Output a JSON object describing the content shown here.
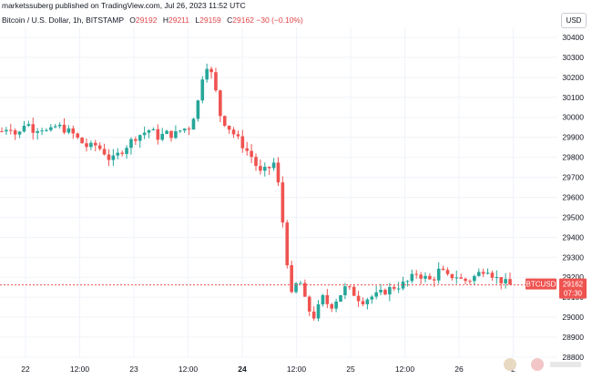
{
  "header": {
    "publisher": "marketssuberg published on TradingView.com, Jul 26, 2023 11:52 UTC",
    "symbol": "Bitcoin / U.S. Dollar, 1h, BITSTAMP",
    "ohlc": {
      "O": "29192",
      "H": "29211",
      "L": "29159",
      "C": "29162",
      "change": "−30 (−0.10%)"
    }
  },
  "currency": "USD",
  "price_tag": {
    "symbol": "BTCUSD",
    "price": "29162",
    "countdown": "07:30"
  },
  "colors": {
    "up": "#26a69a",
    "down": "#ef5350",
    "price_line": "#ef5350",
    "grid": "#f0f3fa"
  },
  "chart_data": {
    "type": "candlestick",
    "title": "Bitcoin / U.S. Dollar, 1h, BITSTAMP",
    "ylim": [
      28800,
      30450
    ],
    "yticks": [
      30400,
      30300,
      30200,
      30100,
      30000,
      29900,
      29800,
      29700,
      29600,
      29500,
      29400,
      29300,
      29200,
      29100,
      29000,
      28900,
      28800
    ],
    "xticks": [
      {
        "label": "22",
        "bold": false
      },
      {
        "label": "12:00",
        "bold": false
      },
      {
        "label": "23",
        "bold": false
      },
      {
        "label": "12:00",
        "bold": false
      },
      {
        "label": "24",
        "bold": true
      },
      {
        "label": "12:00",
        "bold": false
      },
      {
        "label": "25",
        "bold": false
      },
      {
        "label": "12:00",
        "bold": false
      },
      {
        "label": "26",
        "bold": false
      },
      {
        "label": "2",
        "bold": false
      }
    ],
    "current_price": 29162,
    "price_series": [
      29930,
      29960,
      29900,
      29980,
      29940,
      29950,
      29920,
      29960,
      29940,
      29920,
      29880,
      29850,
      29860,
      29830,
      29780,
      29820,
      29860,
      29900,
      29920,
      29940,
      29900,
      29920,
      29910,
      29940,
      29950,
      30060,
      30280,
      30200,
      30000,
      29950,
      29900,
      29850,
      29800,
      29720,
      29740,
      29780,
      29450,
      29100,
      29200,
      29050,
      29000,
      29100,
      29050,
      29100,
      29150,
      29120,
      29080,
      29100,
      29110,
      29130,
      29150,
      29160,
      29180,
      29220,
      29200,
      29180,
      29240,
      29200,
      29210,
      29180,
      29190,
      29220,
      29250,
      29200,
      29180,
      29160
    ],
    "legend": "none"
  }
}
